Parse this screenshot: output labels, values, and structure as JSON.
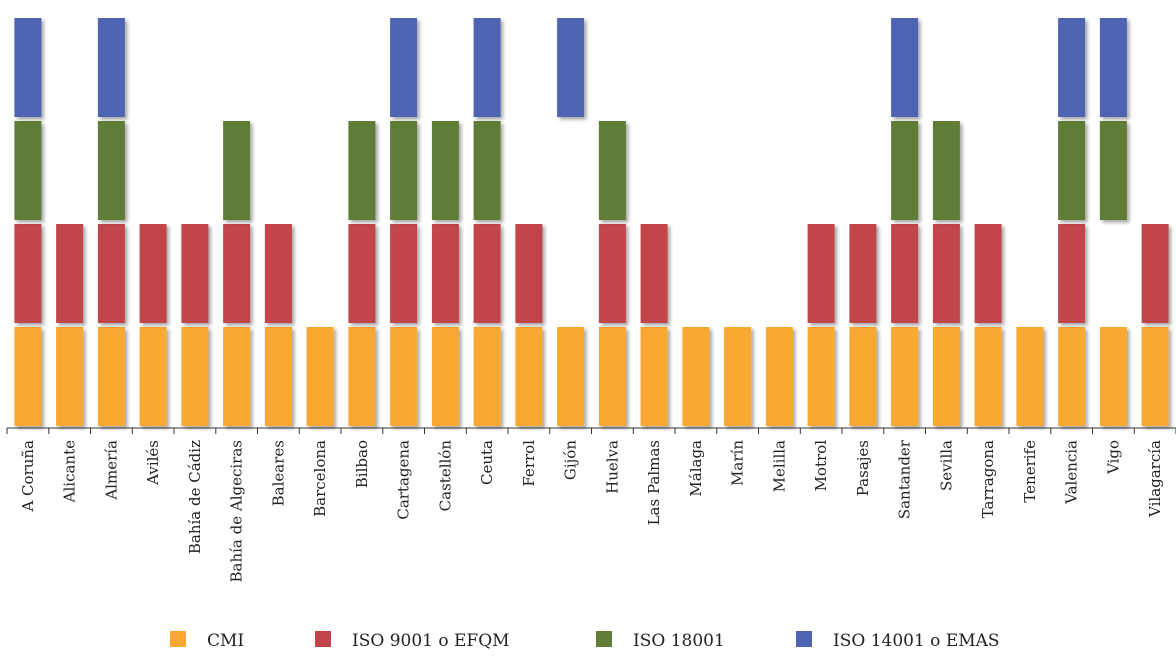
{
  "chart_data": {
    "type": "bar",
    "stacked": true,
    "categories": [
      "A Coruña",
      "Alicante",
      "Almería",
      "Avilés",
      "Bahía de Cádiz",
      "Bahía de Algeciras",
      "Baleares",
      "Barcelona",
      "Bilbao",
      "Cartagena",
      "Castellón",
      "Ceuta",
      "Ferrol",
      "Gijón",
      "Huelva",
      "Las Palmas",
      "Málaga",
      "Marín",
      "Melilla",
      "Motrol",
      "Pasajes",
      "Santander",
      "Sevilla",
      "Tarragona",
      "Tenerife",
      "Valencia",
      "Vigo",
      "Vilagarcía"
    ],
    "series": [
      {
        "name": "CMI",
        "color": "#F9A832",
        "values": [
          1,
          1,
          1,
          1,
          1,
          1,
          1,
          1,
          1,
          1,
          1,
          1,
          1,
          1,
          1,
          1,
          1,
          1,
          1,
          1,
          1,
          1,
          1,
          1,
          1,
          1,
          1,
          1
        ]
      },
      {
        "name": "ISO 9001 o EFQM",
        "color": "#C2444A",
        "values": [
          1,
          1,
          1,
          1,
          1,
          1,
          1,
          0,
          1,
          1,
          1,
          1,
          1,
          0,
          1,
          1,
          0,
          0,
          0,
          1,
          1,
          1,
          1,
          1,
          0,
          1,
          0,
          1
        ]
      },
      {
        "name": "ISO 18001",
        "color": "#617D38",
        "values": [
          1,
          0,
          1,
          0,
          0,
          1,
          0,
          0,
          1,
          1,
          1,
          1,
          0,
          0,
          1,
          0,
          0,
          0,
          0,
          0,
          0,
          1,
          1,
          0,
          0,
          1,
          1,
          0
        ]
      },
      {
        "name": "ISO 14001 o EMAS",
        "color": "#4F64B3",
        "values": [
          1,
          0,
          1,
          0,
          0,
          0,
          0,
          0,
          0,
          1,
          0,
          1,
          0,
          1,
          0,
          0,
          0,
          0,
          0,
          0,
          0,
          1,
          0,
          0,
          0,
          1,
          1,
          0
        ]
      }
    ],
    "ylim": [
      0,
      4
    ],
    "grid": false,
    "legend_position": "bottom"
  }
}
